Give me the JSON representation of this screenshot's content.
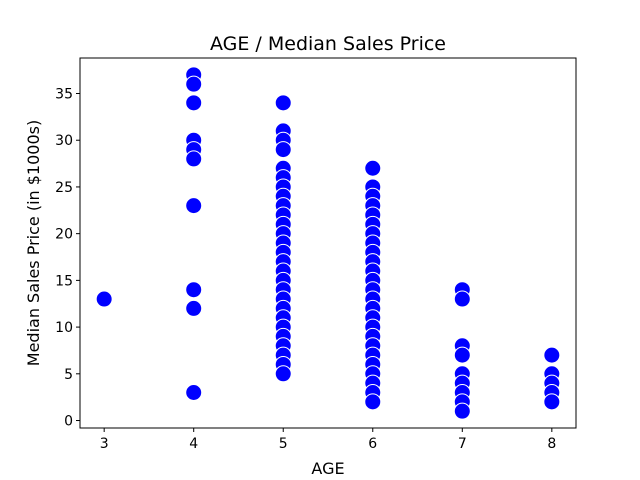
{
  "chart_data": {
    "type": "scatter",
    "title": "AGE / Median Sales Price",
    "xlabel": "AGE",
    "ylabel": "Median Sales Price (in $1000s)",
    "xlim": [
      2.73,
      8.27
    ],
    "ylim": [
      -0.8,
      38.8
    ],
    "x_ticks": [
      3,
      4,
      5,
      6,
      7,
      8
    ],
    "y_ticks": [
      0,
      5,
      10,
      15,
      20,
      25,
      30,
      35
    ],
    "grid": false,
    "marker_color": "#0000ff",
    "marker_edge_color": "#ffffff",
    "points": [
      {
        "x": 3,
        "y": 13
      },
      {
        "x": 4,
        "y": 37
      },
      {
        "x": 4,
        "y": 36
      },
      {
        "x": 4,
        "y": 34
      },
      {
        "x": 4,
        "y": 30
      },
      {
        "x": 4,
        "y": 29
      },
      {
        "x": 4,
        "y": 28
      },
      {
        "x": 4,
        "y": 23
      },
      {
        "x": 4,
        "y": 14
      },
      {
        "x": 4,
        "y": 12
      },
      {
        "x": 4,
        "y": 3
      },
      {
        "x": 5,
        "y": 34
      },
      {
        "x": 5,
        "y": 31
      },
      {
        "x": 5,
        "y": 30
      },
      {
        "x": 5,
        "y": 29
      },
      {
        "x": 5,
        "y": 27
      },
      {
        "x": 5,
        "y": 26
      },
      {
        "x": 5,
        "y": 25
      },
      {
        "x": 5,
        "y": 24
      },
      {
        "x": 5,
        "y": 23
      },
      {
        "x": 5,
        "y": 22
      },
      {
        "x": 5,
        "y": 21
      },
      {
        "x": 5,
        "y": 20
      },
      {
        "x": 5,
        "y": 19
      },
      {
        "x": 5,
        "y": 18
      },
      {
        "x": 5,
        "y": 17
      },
      {
        "x": 5,
        "y": 16
      },
      {
        "x": 5,
        "y": 15
      },
      {
        "x": 5,
        "y": 14
      },
      {
        "x": 5,
        "y": 13
      },
      {
        "x": 5,
        "y": 12
      },
      {
        "x": 5,
        "y": 11
      },
      {
        "x": 5,
        "y": 10
      },
      {
        "x": 5,
        "y": 9
      },
      {
        "x": 5,
        "y": 8
      },
      {
        "x": 5,
        "y": 7
      },
      {
        "x": 5,
        "y": 6
      },
      {
        "x": 5,
        "y": 5
      },
      {
        "x": 6,
        "y": 27
      },
      {
        "x": 6,
        "y": 25
      },
      {
        "x": 6,
        "y": 24
      },
      {
        "x": 6,
        "y": 23
      },
      {
        "x": 6,
        "y": 22
      },
      {
        "x": 6,
        "y": 21
      },
      {
        "x": 6,
        "y": 20
      },
      {
        "x": 6,
        "y": 19
      },
      {
        "x": 6,
        "y": 18
      },
      {
        "x": 6,
        "y": 17
      },
      {
        "x": 6,
        "y": 16
      },
      {
        "x": 6,
        "y": 15
      },
      {
        "x": 6,
        "y": 14
      },
      {
        "x": 6,
        "y": 13
      },
      {
        "x": 6,
        "y": 12
      },
      {
        "x": 6,
        "y": 11
      },
      {
        "x": 6,
        "y": 10
      },
      {
        "x": 6,
        "y": 9
      },
      {
        "x": 6,
        "y": 8
      },
      {
        "x": 6,
        "y": 7
      },
      {
        "x": 6,
        "y": 6
      },
      {
        "x": 6,
        "y": 5
      },
      {
        "x": 6,
        "y": 4
      },
      {
        "x": 6,
        "y": 3
      },
      {
        "x": 6,
        "y": 2
      },
      {
        "x": 7,
        "y": 14
      },
      {
        "x": 7,
        "y": 13
      },
      {
        "x": 7,
        "y": 8
      },
      {
        "x": 7,
        "y": 7
      },
      {
        "x": 7,
        "y": 5
      },
      {
        "x": 7,
        "y": 4
      },
      {
        "x": 7,
        "y": 3
      },
      {
        "x": 7,
        "y": 2
      },
      {
        "x": 7,
        "y": 1
      },
      {
        "x": 8,
        "y": 7
      },
      {
        "x": 8,
        "y": 5
      },
      {
        "x": 8,
        "y": 4
      },
      {
        "x": 8,
        "y": 3
      },
      {
        "x": 8,
        "y": 2
      }
    ]
  }
}
